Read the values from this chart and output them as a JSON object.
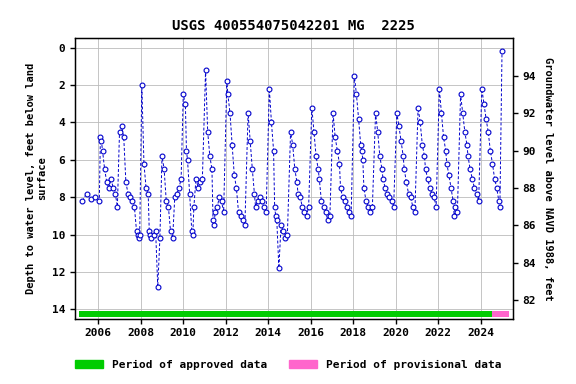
{
  "title": "USGS 400554075042201 MG  2225",
  "ylabel_left": "Depth to water level, feet below land\nsurface",
  "ylabel_right": "Groundwater level above NAVD 1988, feet",
  "ylim_left": [
    14.5,
    -0.5
  ],
  "ylim_right": [
    81.0,
    96.0
  ],
  "yticks_left": [
    0,
    2,
    4,
    6,
    8,
    10,
    12,
    14
  ],
  "yticks_right": [
    82,
    84,
    86,
    88,
    90,
    92,
    94
  ],
  "xlim": [
    2004.9,
    2025.5
  ],
  "xtick_years": [
    2006,
    2008,
    2010,
    2012,
    2014,
    2016,
    2018,
    2020,
    2022,
    2024
  ],
  "approved_color": "#00cc00",
  "provisional_color": "#ff66cc",
  "data_color": "#0000cc",
  "background_color": "#ffffff",
  "grid_color": "#bbbbbb",
  "title_fontsize": 10,
  "label_fontsize": 7.5,
  "tick_fontsize": 8,
  "legend_fontsize": 8,
  "data_points": [
    [
      2005.25,
      8.2
    ],
    [
      2005.45,
      7.8
    ],
    [
      2005.65,
      8.1
    ],
    [
      2005.85,
      8.0
    ],
    [
      2006.05,
      8.2
    ],
    [
      2006.1,
      4.8
    ],
    [
      2006.15,
      5.0
    ],
    [
      2006.2,
      5.5
    ],
    [
      2006.3,
      6.5
    ],
    [
      2006.4,
      7.2
    ],
    [
      2006.5,
      7.5
    ],
    [
      2006.6,
      7.0
    ],
    [
      2006.7,
      7.5
    ],
    [
      2006.8,
      7.8
    ],
    [
      2006.9,
      8.5
    ],
    [
      2007.0,
      4.5
    ],
    [
      2007.1,
      4.2
    ],
    [
      2007.2,
      4.8
    ],
    [
      2007.3,
      7.2
    ],
    [
      2007.4,
      7.8
    ],
    [
      2007.5,
      8.0
    ],
    [
      2007.6,
      8.2
    ],
    [
      2007.7,
      8.5
    ],
    [
      2007.8,
      9.8
    ],
    [
      2007.85,
      10.0
    ],
    [
      2007.9,
      10.2
    ],
    [
      2007.95,
      10.0
    ],
    [
      2008.05,
      2.0
    ],
    [
      2008.15,
      6.2
    ],
    [
      2008.25,
      7.5
    ],
    [
      2008.35,
      7.8
    ],
    [
      2008.4,
      9.8
    ],
    [
      2008.45,
      10.0
    ],
    [
      2008.5,
      10.2
    ],
    [
      2008.6,
      10.0
    ],
    [
      2008.7,
      9.8
    ],
    [
      2008.8,
      12.8
    ],
    [
      2008.9,
      10.2
    ],
    [
      2009.0,
      5.8
    ],
    [
      2009.1,
      6.5
    ],
    [
      2009.2,
      8.2
    ],
    [
      2009.3,
      8.5
    ],
    [
      2009.4,
      9.8
    ],
    [
      2009.5,
      10.2
    ],
    [
      2009.6,
      8.0
    ],
    [
      2009.7,
      7.8
    ],
    [
      2009.8,
      7.5
    ],
    [
      2009.9,
      7.0
    ],
    [
      2010.0,
      2.5
    ],
    [
      2010.1,
      3.0
    ],
    [
      2010.15,
      5.5
    ],
    [
      2010.2,
      6.0
    ],
    [
      2010.3,
      7.8
    ],
    [
      2010.4,
      9.8
    ],
    [
      2010.45,
      10.0
    ],
    [
      2010.5,
      8.5
    ],
    [
      2010.6,
      7.0
    ],
    [
      2010.7,
      7.5
    ],
    [
      2010.8,
      7.2
    ],
    [
      2010.9,
      7.0
    ],
    [
      2011.05,
      1.2
    ],
    [
      2011.15,
      4.5
    ],
    [
      2011.25,
      5.8
    ],
    [
      2011.35,
      6.5
    ],
    [
      2011.4,
      9.2
    ],
    [
      2011.45,
      9.5
    ],
    [
      2011.5,
      8.8
    ],
    [
      2011.6,
      8.5
    ],
    [
      2011.7,
      8.0
    ],
    [
      2011.8,
      8.2
    ],
    [
      2011.9,
      8.8
    ],
    [
      2012.05,
      1.8
    ],
    [
      2012.1,
      2.5
    ],
    [
      2012.2,
      3.5
    ],
    [
      2012.3,
      5.2
    ],
    [
      2012.4,
      6.8
    ],
    [
      2012.5,
      7.5
    ],
    [
      2012.6,
      8.8
    ],
    [
      2012.7,
      9.0
    ],
    [
      2012.8,
      9.2
    ],
    [
      2012.9,
      9.5
    ],
    [
      2013.05,
      3.5
    ],
    [
      2013.15,
      5.0
    ],
    [
      2013.25,
      6.5
    ],
    [
      2013.35,
      7.8
    ],
    [
      2013.4,
      8.5
    ],
    [
      2013.5,
      8.2
    ],
    [
      2013.6,
      8.0
    ],
    [
      2013.7,
      8.2
    ],
    [
      2013.8,
      8.5
    ],
    [
      2013.9,
      8.8
    ],
    [
      2014.05,
      2.2
    ],
    [
      2014.15,
      4.0
    ],
    [
      2014.25,
      5.5
    ],
    [
      2014.3,
      8.5
    ],
    [
      2014.35,
      9.0
    ],
    [
      2014.4,
      9.2
    ],
    [
      2014.5,
      11.8
    ],
    [
      2014.6,
      9.5
    ],
    [
      2014.7,
      9.8
    ],
    [
      2014.8,
      10.2
    ],
    [
      2014.9,
      10.0
    ],
    [
      2015.05,
      4.5
    ],
    [
      2015.15,
      5.2
    ],
    [
      2015.25,
      6.5
    ],
    [
      2015.35,
      7.2
    ],
    [
      2015.4,
      7.8
    ],
    [
      2015.5,
      8.0
    ],
    [
      2015.6,
      8.5
    ],
    [
      2015.7,
      8.8
    ],
    [
      2015.8,
      9.0
    ],
    [
      2015.9,
      8.5
    ],
    [
      2016.05,
      3.2
    ],
    [
      2016.15,
      4.5
    ],
    [
      2016.25,
      5.8
    ],
    [
      2016.35,
      6.5
    ],
    [
      2016.4,
      7.0
    ],
    [
      2016.5,
      8.2
    ],
    [
      2016.6,
      8.5
    ],
    [
      2016.7,
      8.8
    ],
    [
      2016.8,
      9.2
    ],
    [
      2016.9,
      9.0
    ],
    [
      2017.05,
      3.5
    ],
    [
      2017.15,
      4.8
    ],
    [
      2017.25,
      5.5
    ],
    [
      2017.35,
      6.2
    ],
    [
      2017.4,
      7.5
    ],
    [
      2017.5,
      8.0
    ],
    [
      2017.6,
      8.2
    ],
    [
      2017.7,
      8.5
    ],
    [
      2017.8,
      8.8
    ],
    [
      2017.9,
      9.0
    ],
    [
      2018.05,
      1.5
    ],
    [
      2018.15,
      2.5
    ],
    [
      2018.25,
      3.8
    ],
    [
      2018.35,
      5.2
    ],
    [
      2018.4,
      5.5
    ],
    [
      2018.45,
      6.0
    ],
    [
      2018.5,
      7.5
    ],
    [
      2018.6,
      8.2
    ],
    [
      2018.7,
      8.5
    ],
    [
      2018.8,
      8.8
    ],
    [
      2018.9,
      8.5
    ],
    [
      2019.05,
      3.5
    ],
    [
      2019.15,
      4.5
    ],
    [
      2019.25,
      5.8
    ],
    [
      2019.35,
      6.5
    ],
    [
      2019.4,
      7.0
    ],
    [
      2019.5,
      7.5
    ],
    [
      2019.6,
      7.8
    ],
    [
      2019.7,
      8.0
    ],
    [
      2019.8,
      8.2
    ],
    [
      2019.9,
      8.5
    ],
    [
      2020.05,
      3.5
    ],
    [
      2020.15,
      4.2
    ],
    [
      2020.25,
      5.0
    ],
    [
      2020.35,
      5.8
    ],
    [
      2020.4,
      6.5
    ],
    [
      2020.5,
      7.2
    ],
    [
      2020.6,
      7.8
    ],
    [
      2020.7,
      8.0
    ],
    [
      2020.8,
      8.5
    ],
    [
      2020.9,
      8.8
    ],
    [
      2021.05,
      3.2
    ],
    [
      2021.15,
      4.0
    ],
    [
      2021.25,
      5.2
    ],
    [
      2021.35,
      5.8
    ],
    [
      2021.4,
      6.5
    ],
    [
      2021.5,
      7.0
    ],
    [
      2021.6,
      7.5
    ],
    [
      2021.7,
      7.8
    ],
    [
      2021.8,
      8.0
    ],
    [
      2021.9,
      8.5
    ],
    [
      2022.05,
      2.2
    ],
    [
      2022.15,
      3.5
    ],
    [
      2022.25,
      4.8
    ],
    [
      2022.35,
      5.5
    ],
    [
      2022.4,
      6.2
    ],
    [
      2022.5,
      6.8
    ],
    [
      2022.6,
      7.5
    ],
    [
      2022.7,
      8.2
    ],
    [
      2022.75,
      9.0
    ],
    [
      2022.8,
      8.5
    ],
    [
      2022.9,
      8.8
    ],
    [
      2023.05,
      2.5
    ],
    [
      2023.15,
      3.5
    ],
    [
      2023.25,
      4.5
    ],
    [
      2023.35,
      5.2
    ],
    [
      2023.4,
      5.8
    ],
    [
      2023.5,
      6.5
    ],
    [
      2023.6,
      7.0
    ],
    [
      2023.7,
      7.5
    ],
    [
      2023.8,
      7.8
    ],
    [
      2023.9,
      8.2
    ],
    [
      2024.05,
      2.2
    ],
    [
      2024.15,
      3.0
    ],
    [
      2024.25,
      3.8
    ],
    [
      2024.35,
      4.5
    ],
    [
      2024.45,
      5.5
    ],
    [
      2024.55,
      6.2
    ],
    [
      2024.65,
      7.0
    ],
    [
      2024.75,
      7.5
    ],
    [
      2024.85,
      8.2
    ],
    [
      2024.9,
      8.5
    ],
    [
      2025.0,
      0.2
    ]
  ],
  "approved_bar_start": 2005.1,
  "approved_bar_end": 2024.55,
  "provisional_bar_start": 2024.55,
  "provisional_bar_end": 2025.35
}
